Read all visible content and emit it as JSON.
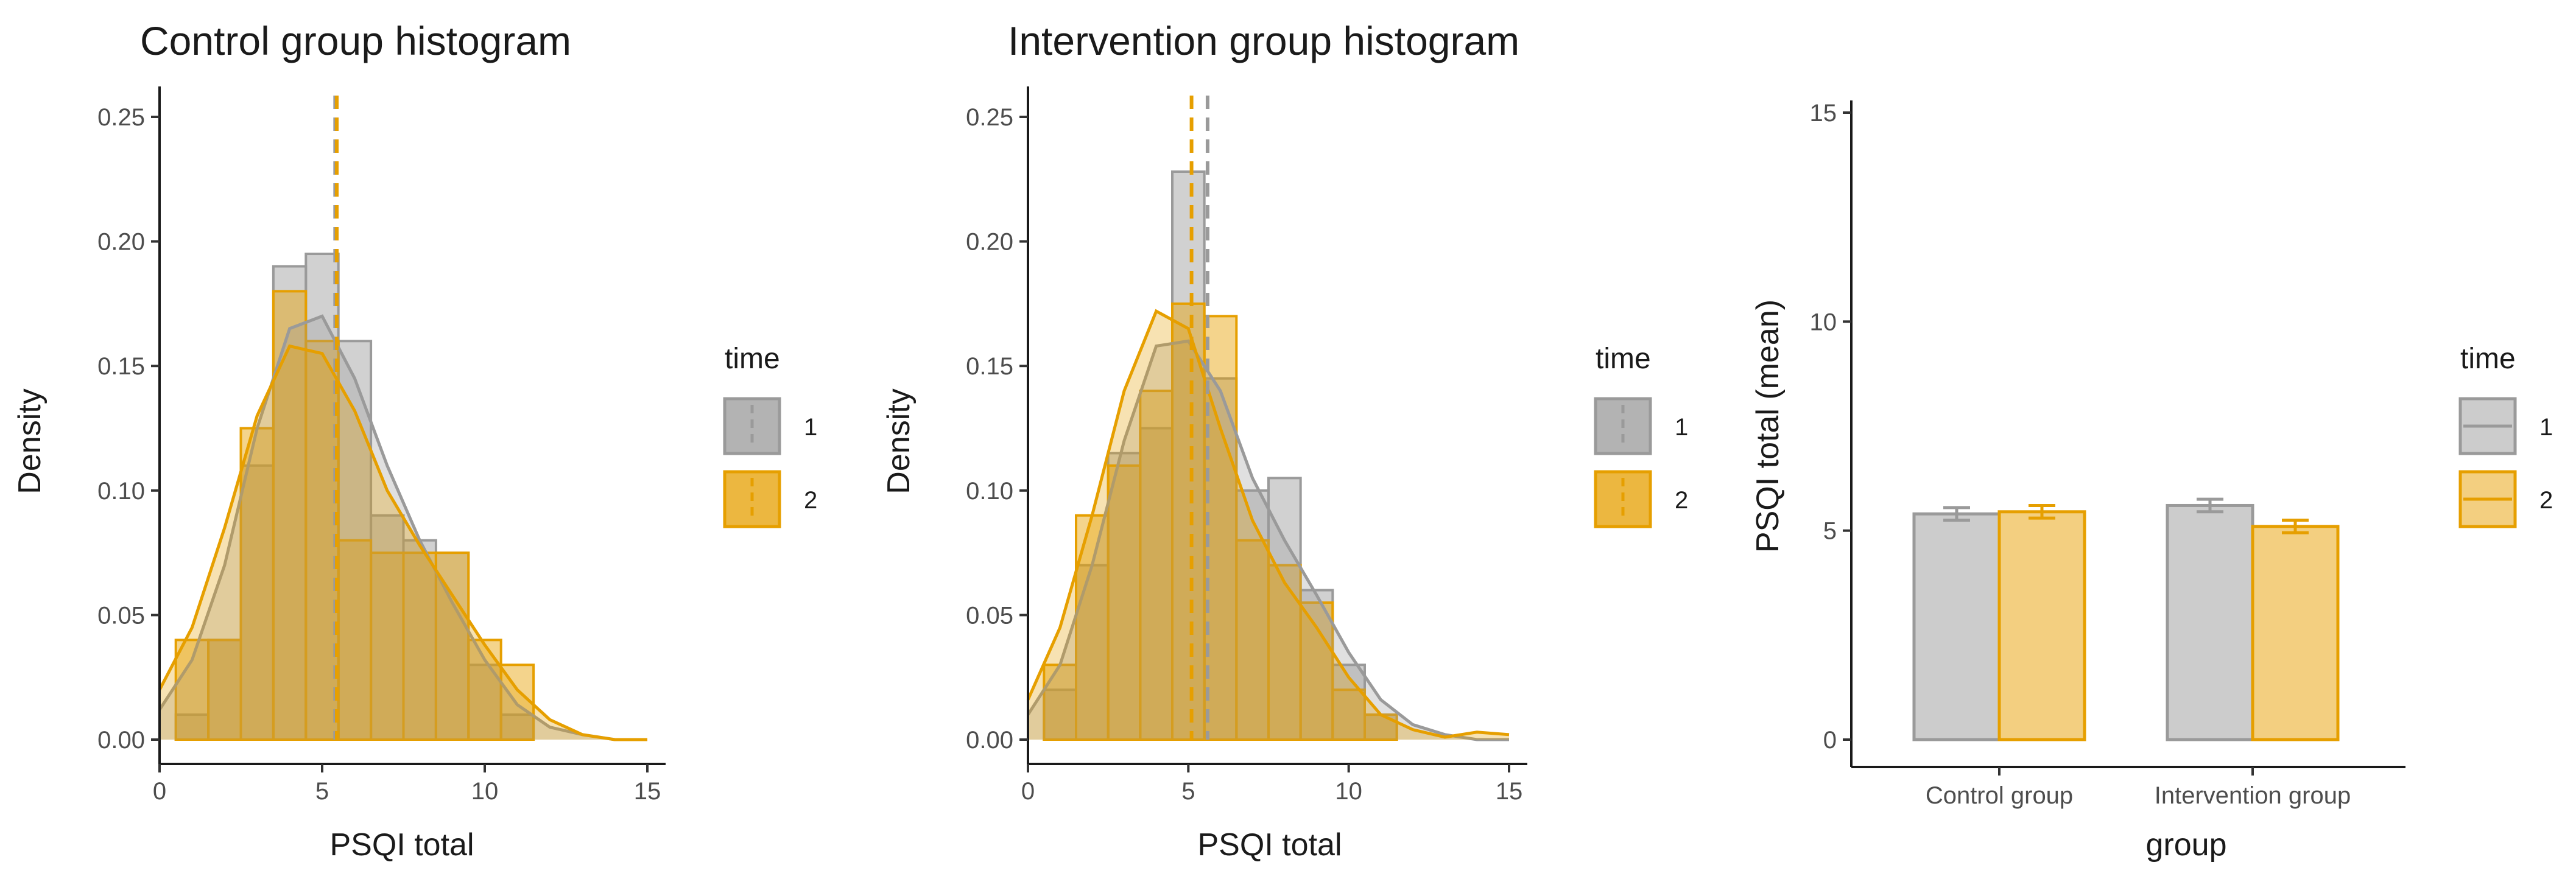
{
  "colors": {
    "time1_fill": "#999999",
    "time1_line": "#9a9a9a",
    "time2_fill": "#E69F00",
    "time2_line": "#E69F00",
    "bar1_fill": "#cccccc",
    "bar2_fill": "#f3cf80",
    "axis": "#1a1a1a"
  },
  "chart_data": [
    {
      "type": "histogram",
      "title": "Control group histogram",
      "xlabel": "PSQI total",
      "ylabel": "Density",
      "xlim": [
        0,
        15
      ],
      "ylim": [
        0,
        0.25
      ],
      "xticks": [
        "0",
        "5",
        "10",
        "15"
      ],
      "yticks": [
        "0.00",
        "0.05",
        "0.10",
        "0.15",
        "0.20",
        "0.25"
      ],
      "legend": {
        "title": "time",
        "entries": [
          "1",
          "2"
        ],
        "position": "right"
      },
      "bin_width": 1,
      "bin_starts": [
        0.5,
        1.5,
        2.5,
        3.5,
        4.5,
        5.5,
        6.5,
        7.5,
        8.5,
        9.5,
        10.5,
        11.5
      ],
      "series": [
        {
          "name": "1",
          "densities": [
            0.01,
            0.04,
            0.11,
            0.19,
            0.195,
            0.16,
            0.09,
            0.08,
            0.075,
            0.03,
            0.01,
            0.0
          ],
          "mean": 5.4,
          "density_x": [
            0,
            1,
            2,
            3,
            4,
            5,
            6,
            7,
            8,
            9,
            10,
            11,
            12,
            13,
            14,
            15
          ],
          "density_y": [
            0.012,
            0.032,
            0.07,
            0.125,
            0.165,
            0.17,
            0.145,
            0.11,
            0.08,
            0.055,
            0.032,
            0.014,
            0.005,
            0.002,
            0.0,
            0.0
          ]
        },
        {
          "name": "2",
          "densities": [
            0.04,
            0.04,
            0.125,
            0.18,
            0.16,
            0.08,
            0.075,
            0.075,
            0.075,
            0.04,
            0.03,
            0.0
          ],
          "mean": 5.45,
          "density_x": [
            0,
            1,
            2,
            3,
            4,
            5,
            6,
            7,
            8,
            9,
            10,
            11,
            12,
            13,
            14,
            15
          ],
          "density_y": [
            0.02,
            0.045,
            0.085,
            0.13,
            0.158,
            0.155,
            0.132,
            0.1,
            0.078,
            0.058,
            0.038,
            0.02,
            0.008,
            0.002,
            0.0,
            0.0
          ]
        }
      ]
    },
    {
      "type": "histogram",
      "title": "Intervention group histogram",
      "xlabel": "PSQI total",
      "ylabel": "Density",
      "xlim": [
        0,
        15
      ],
      "ylim": [
        0,
        0.25
      ],
      "xticks": [
        "0",
        "5",
        "10",
        "15"
      ],
      "yticks": [
        "0.00",
        "0.05",
        "0.10",
        "0.15",
        "0.20",
        "0.25"
      ],
      "legend": {
        "title": "time",
        "entries": [
          "1",
          "2"
        ],
        "position": "right"
      },
      "bin_width": 1,
      "bin_starts": [
        0.5,
        1.5,
        2.5,
        3.5,
        4.5,
        5.5,
        6.5,
        7.5,
        8.5,
        9.5,
        10.5,
        11.5
      ],
      "series": [
        {
          "name": "1",
          "densities": [
            0.02,
            0.07,
            0.115,
            0.125,
            0.228,
            0.145,
            0.1,
            0.105,
            0.06,
            0.03,
            0.01,
            0.0
          ],
          "mean": 5.6,
          "density_x": [
            0,
            1,
            2,
            3,
            4,
            5,
            6,
            7,
            8,
            9,
            10,
            11,
            12,
            13,
            14,
            15
          ],
          "density_y": [
            0.01,
            0.03,
            0.07,
            0.12,
            0.158,
            0.16,
            0.14,
            0.105,
            0.08,
            0.058,
            0.035,
            0.016,
            0.006,
            0.002,
            0.0,
            0.0
          ]
        },
        {
          "name": "2",
          "densities": [
            0.03,
            0.09,
            0.11,
            0.14,
            0.175,
            0.17,
            0.08,
            0.07,
            0.055,
            0.02,
            0.01,
            0.0
          ],
          "mean": 5.1,
          "density_x": [
            0,
            1,
            2,
            3,
            4,
            5,
            6,
            7,
            8,
            9,
            10,
            11,
            12,
            13,
            14,
            15
          ],
          "density_y": [
            0.016,
            0.045,
            0.09,
            0.14,
            0.172,
            0.165,
            0.125,
            0.088,
            0.063,
            0.045,
            0.025,
            0.01,
            0.004,
            0.001,
            0.003,
            0.002
          ]
        }
      ]
    },
    {
      "type": "bar",
      "title": "",
      "xlabel": "group",
      "ylabel": "PSQI total (mean)",
      "ylim": [
        0,
        15
      ],
      "yticks": [
        "0",
        "5",
        "10",
        "15"
      ],
      "categories": [
        "Control group",
        "Intervention group"
      ],
      "legend": {
        "title": "time",
        "entries": [
          "1",
          "2"
        ],
        "position": "right"
      },
      "series": [
        {
          "name": "1",
          "values": [
            5.4,
            5.6
          ],
          "errors": [
            0.15,
            0.15
          ]
        },
        {
          "name": "2",
          "values": [
            5.45,
            5.1
          ],
          "errors": [
            0.15,
            0.15
          ]
        }
      ]
    }
  ]
}
